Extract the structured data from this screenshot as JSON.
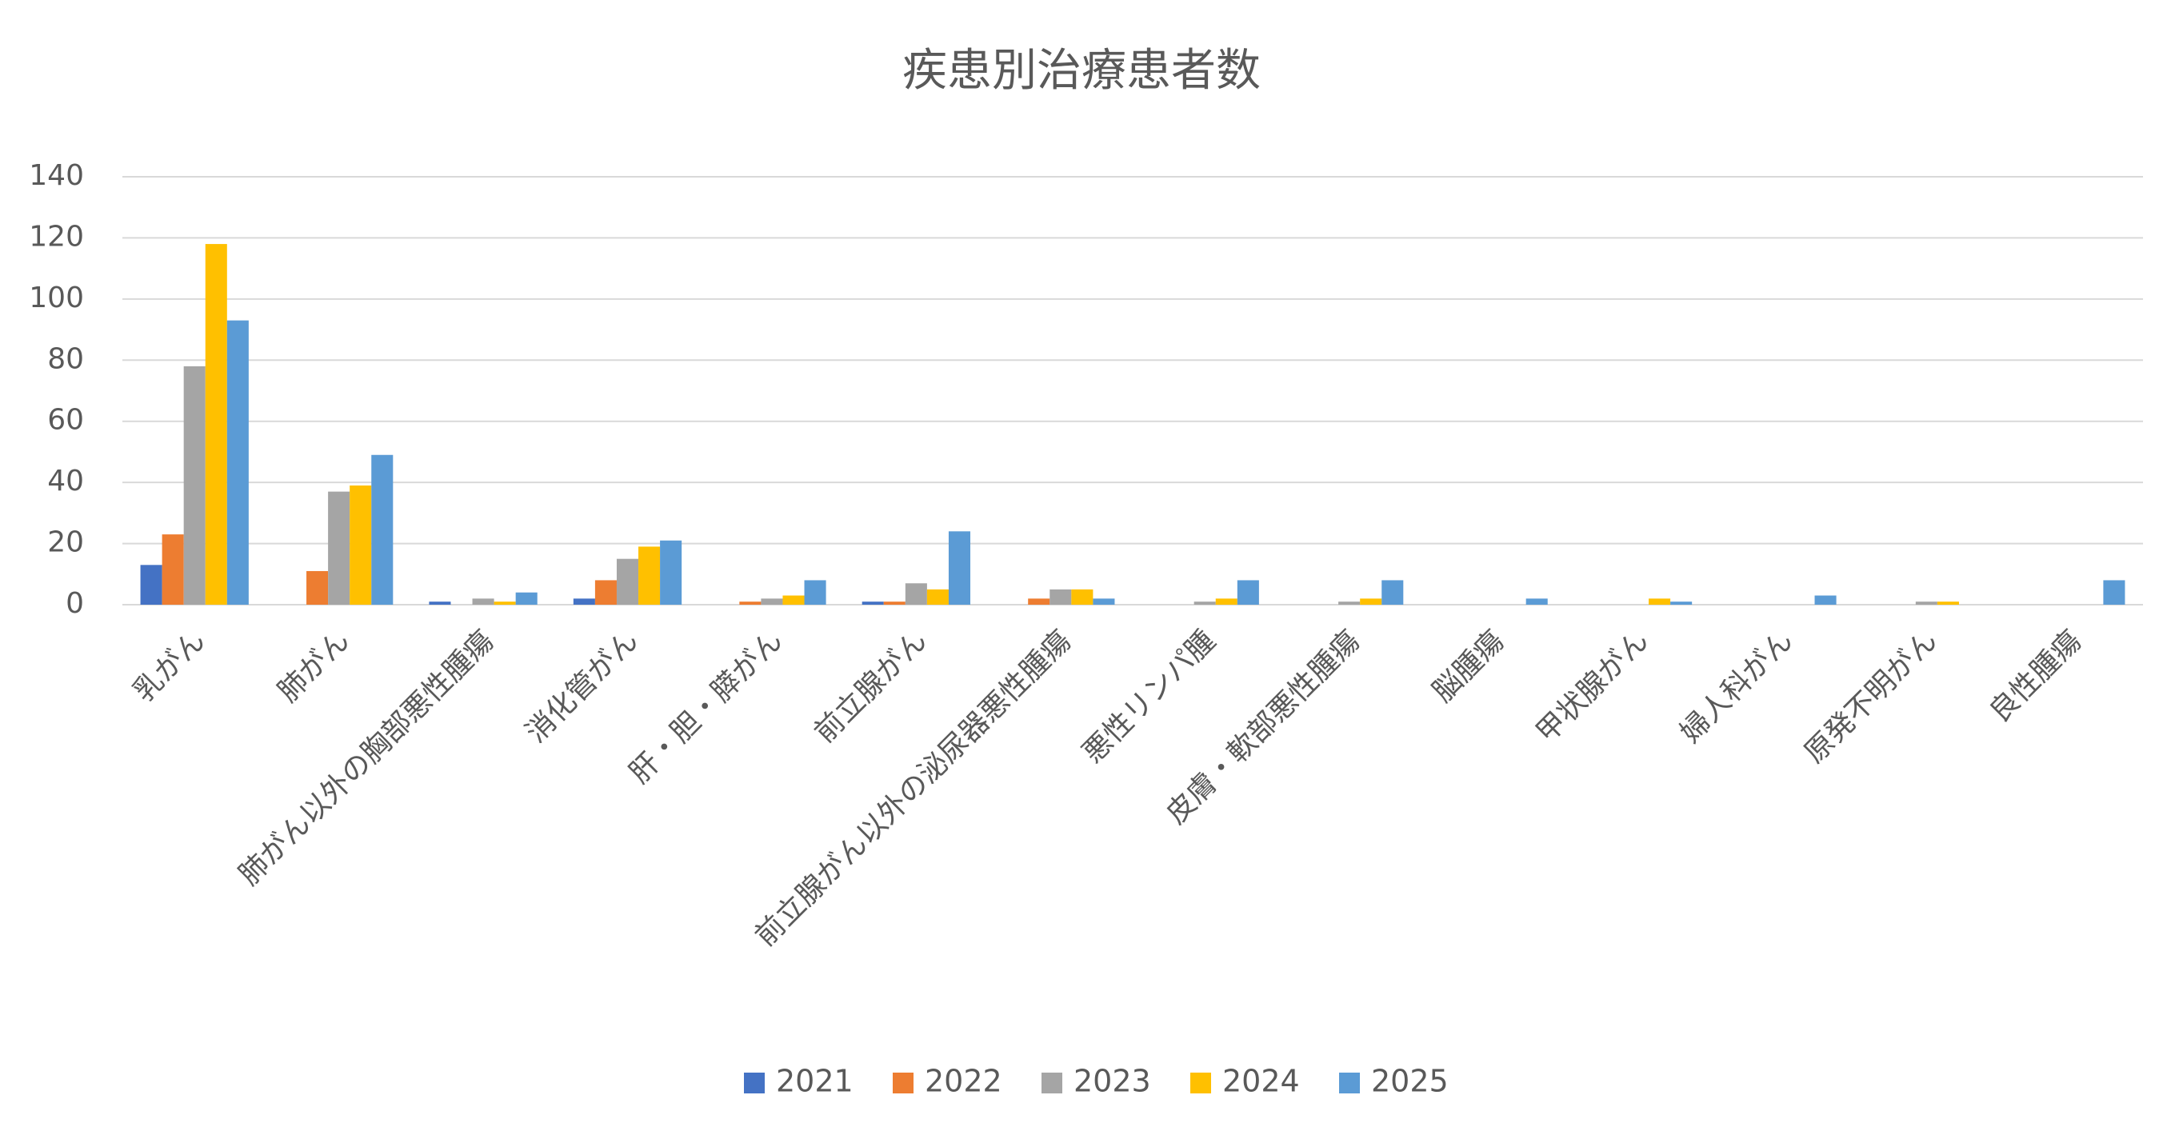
{
  "chart_data": {
    "type": "bar",
    "title": "疾患別治療患者数",
    "categories": [
      "乳がん",
      "肺がん",
      "肺がん以外の胸部悪性腫瘍",
      "消化管がん",
      "肝・胆・膵がん",
      "前立腺がん",
      "前立腺がん以外の泌尿器悪性腫瘍",
      "悪性リンパ腫",
      "皮膚・軟部悪性腫瘍",
      "脳腫瘍",
      "甲状腺がん",
      "婦人科がん",
      "原発不明がん",
      "良性腫瘍"
    ],
    "series": [
      {
        "name": "2021",
        "color": "#4472c4",
        "values": [
          13,
          0,
          1,
          2,
          0,
          1,
          0,
          0,
          0,
          0,
          0,
          0,
          0,
          0
        ]
      },
      {
        "name": "2022",
        "color": "#ed7d31",
        "values": [
          23,
          11,
          0,
          8,
          1,
          1,
          2,
          0,
          0,
          0,
          0,
          0,
          0,
          0
        ]
      },
      {
        "name": "2023",
        "color": "#a5a5a5",
        "values": [
          78,
          37,
          2,
          15,
          2,
          7,
          5,
          1,
          1,
          0,
          0,
          0,
          1,
          0
        ]
      },
      {
        "name": "2024",
        "color": "#ffc000",
        "values": [
          118,
          39,
          1,
          19,
          3,
          5,
          5,
          2,
          2,
          0,
          2,
          0,
          1,
          0
        ]
      },
      {
        "name": "2025",
        "color": "#5b9bd5",
        "values": [
          93,
          49,
          4,
          21,
          8,
          24,
          2,
          8,
          8,
          2,
          1,
          3,
          0,
          8
        ]
      }
    ],
    "ylim": [
      0,
      140
    ],
    "yticks": [
      0,
      20,
      40,
      60,
      80,
      100,
      120,
      140
    ],
    "grid": true,
    "legend": "bottom"
  }
}
